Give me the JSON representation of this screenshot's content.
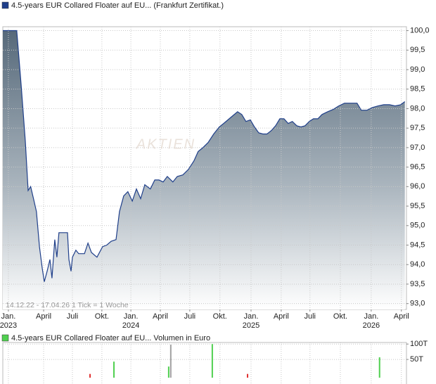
{
  "chart_data": [
    {
      "type": "area",
      "title": "4.5-years EUR Collared Floater auf EU... (Frankfurt Zertifikat.)",
      "note": "14.12.22 - 17.04.26   1 Tick = 1 Woche",
      "watermark": "AKTIEN",
      "color": "#1f3f8a",
      "x": [
        0,
        2,
        4,
        6,
        7.9,
        9.7,
        10.9,
        12,
        13.3,
        14.5,
        15.8,
        17,
        17.9,
        19.1,
        20.3,
        21.2,
        22.4,
        23.3,
        24.2,
        27.9,
        28.5,
        29.4,
        30,
        31.5,
        32.7,
        35.2,
        36.7,
        38.2,
        40.6,
        43,
        44.8,
        46.7,
        48.8,
        50.3,
        52.1,
        53.9,
        55.8,
        57.6,
        59.4,
        61.2,
        63.6,
        65.5,
        67.3,
        69.1,
        70.9,
        73.3,
        75.2,
        77.6,
        80,
        82.4,
        84.2,
        86.1,
        88.5,
        90.9,
        93.3,
        95.2,
        97,
        98.8,
        101.2,
        103,
        104.8,
        106.7,
        108.5,
        110.3,
        112.1,
        113.9,
        115.8,
        117.6,
        119.4,
        121.2,
        123,
        124.8,
        126.7,
        128.5,
        130.3,
        132.1,
        133.9,
        135.8,
        137.6,
        140,
        142.4,
        144.8,
        147.3,
        150.3,
        152.7,
        154.5,
        157,
        159.4,
        161.8,
        164.2,
        166.7,
        169.1,
        171.5,
        173.3
      ],
      "values": [
        100,
        100,
        100,
        100,
        98.6,
        97.17,
        95.9,
        96.0,
        95.67,
        95.36,
        94.46,
        93.9,
        93.56,
        93.83,
        94.13,
        93.65,
        94.64,
        94.19,
        94.82,
        94.82,
        94.13,
        93.83,
        94.19,
        94.37,
        94.28,
        94.28,
        94.55,
        94.31,
        94.19,
        94.46,
        94.5,
        94.6,
        94.64,
        95.36,
        95.76,
        95.87,
        95.63,
        95.94,
        95.69,
        96.05,
        95.94,
        96.17,
        96.17,
        96.12,
        96.26,
        96.12,
        96.26,
        96.3,
        96.44,
        96.66,
        96.9,
        96.99,
        97.13,
        97.35,
        97.53,
        97.62,
        97.71,
        97.8,
        97.92,
        97.85,
        97.67,
        97.71,
        97.53,
        97.38,
        97.35,
        97.35,
        97.44,
        97.56,
        97.74,
        97.74,
        97.62,
        97.67,
        97.56,
        97.53,
        97.56,
        97.67,
        97.74,
        97.74,
        97.85,
        97.92,
        97.98,
        98.07,
        98.14,
        98.14,
        98.14,
        97.96,
        97.96,
        98.03,
        98.07,
        98.1,
        98.1,
        98.07,
        98.1,
        98.18
      ],
      "xlim": [
        0,
        174
      ],
      "xticks": [
        {
          "value": 2.4,
          "label": "Jan.",
          "sublabel": "2023"
        },
        {
          "value": 17.6,
          "label": "April"
        },
        {
          "value": 30,
          "label": "Juli"
        },
        {
          "value": 42.7,
          "label": "Okt."
        },
        {
          "value": 55.2,
          "label": "Jan.",
          "sublabel": "2024"
        },
        {
          "value": 67.9,
          "label": "April"
        },
        {
          "value": 80.6,
          "label": "Juli"
        },
        {
          "value": 93.6,
          "label": "Okt."
        },
        {
          "value": 107,
          "label": "Jan.",
          "sublabel": "2025"
        },
        {
          "value": 120,
          "label": "April"
        },
        {
          "value": 132.4,
          "label": "Juli"
        },
        {
          "value": 145.5,
          "label": "Okt."
        },
        {
          "value": 158.8,
          "label": "Jan.",
          "sublabel": "2026"
        },
        {
          "value": 171.8,
          "label": "April"
        }
      ],
      "ylim": [
        92.85,
        100.1
      ],
      "yticks": [
        {
          "value": 100,
          "label": "100,0"
        },
        {
          "value": 99.5,
          "label": "99,5"
        },
        {
          "value": 99,
          "label": "99,0"
        },
        {
          "value": 98.5,
          "label": "98,5"
        },
        {
          "value": 98,
          "label": "98,0"
        },
        {
          "value": 97.5,
          "label": "97,5"
        },
        {
          "value": 97,
          "label": "97,0"
        },
        {
          "value": 96.5,
          "label": "96,5"
        },
        {
          "value": 96,
          "label": "96,0"
        },
        {
          "value": 95.5,
          "label": "95,5"
        },
        {
          "value": 95,
          "label": "95,0"
        },
        {
          "value": 94.5,
          "label": "94,5"
        },
        {
          "value": 94,
          "label": "94,0"
        },
        {
          "value": 93.5,
          "label": "93,5"
        },
        {
          "value": 93,
          "label": "93,0"
        }
      ],
      "grid": true
    },
    {
      "type": "bar",
      "title": "4.5-years EUR Collared Floater auf EU... Volumen in Euro",
      "x": [
        37.6,
        47.9,
        71.5,
        72.4,
        90.3,
        105.5,
        162.4
      ],
      "values": [
        3000,
        43000,
        27000,
        98000,
        100000,
        3000,
        57000
      ],
      "colors": [
        "#e03030",
        "#50d050",
        "#50d050",
        "#a0a0a0",
        "#50d050",
        "#e03030",
        "#50d050"
      ],
      "xlim": [
        0,
        174
      ],
      "ylim": [
        0,
        105000
      ],
      "yticks": [
        {
          "value": 100000,
          "label": "100T"
        },
        {
          "value": 50000,
          "label": "50T"
        }
      ],
      "grid": true
    }
  ]
}
